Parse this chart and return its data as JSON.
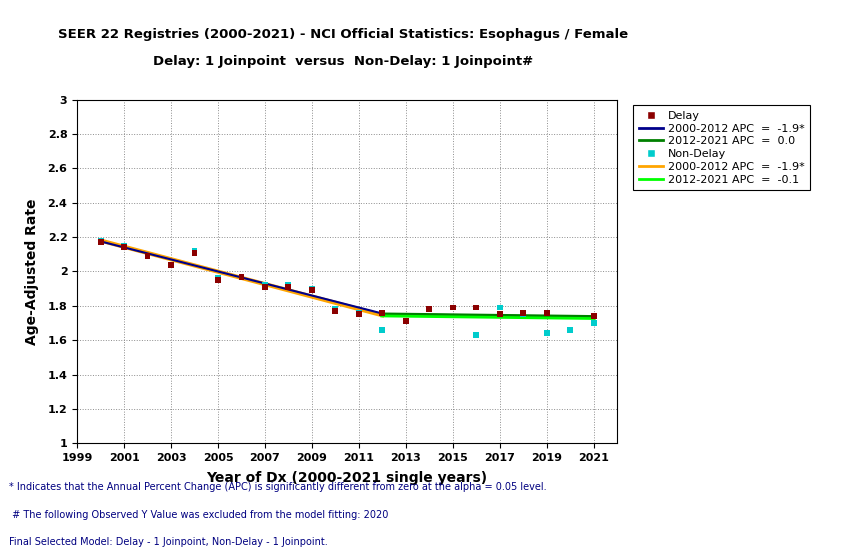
{
  "title_line1": "SEER 22 Registries (2000-2021) - NCI Official Statistics: Esophagus / Female",
  "title_line2": "Delay: 1 Joinpoint  versus  Non-Delay: 1 Joinpoint#",
  "xlabel": "Year of Dx (2000-2021 single years)",
  "ylabel": "Age-Adjusted Rate",
  "xlim": [
    1999,
    2022
  ],
  "ylim": [
    1.0,
    3.0
  ],
  "yticks": [
    1.0,
    1.2,
    1.4,
    1.6,
    1.8,
    2.0,
    2.2,
    2.4,
    2.6,
    2.8,
    3.0
  ],
  "xticks": [
    1999,
    2001,
    2003,
    2005,
    2007,
    2009,
    2011,
    2013,
    2015,
    2017,
    2019,
    2021
  ],
  "delay_scatter_x": [
    2000,
    2001,
    2002,
    2003,
    2004,
    2005,
    2006,
    2007,
    2008,
    2009,
    2010,
    2011,
    2012,
    2013,
    2014,
    2015,
    2016,
    2017,
    2018,
    2019,
    2021
  ],
  "delay_scatter_y": [
    2.17,
    2.14,
    2.09,
    2.04,
    2.11,
    1.95,
    1.97,
    1.91,
    1.91,
    1.89,
    1.77,
    1.75,
    1.76,
    1.71,
    1.78,
    1.79,
    1.79,
    1.75,
    1.76,
    1.76,
    1.74
  ],
  "nondelay_scatter_x": [
    2000,
    2001,
    2002,
    2003,
    2004,
    2005,
    2006,
    2007,
    2008,
    2009,
    2010,
    2011,
    2012,
    2013,
    2014,
    2015,
    2016,
    2017,
    2018,
    2019,
    2020,
    2021
  ],
  "nondelay_scatter_y": [
    2.18,
    2.15,
    2.09,
    2.04,
    2.12,
    1.96,
    1.97,
    1.92,
    1.92,
    1.9,
    1.78,
    1.76,
    1.66,
    1.71,
    1.78,
    1.79,
    1.63,
    1.79,
    1.75,
    1.64,
    1.66,
    1.7
  ],
  "delay_trend1_x": [
    2000,
    2012
  ],
  "delay_trend1_y": [
    2.175,
    1.755
  ],
  "delay_trend2_x": [
    2012,
    2021
  ],
  "delay_trend2_y": [
    1.755,
    1.74
  ],
  "nondelay_trend1_x": [
    2000,
    2012
  ],
  "nondelay_trend1_y": [
    2.18,
    1.745
  ],
  "nondelay_trend2_x": [
    2012,
    2021
  ],
  "nondelay_trend2_y": [
    1.745,
    1.73
  ],
  "delay_color": "#8B0000",
  "delay_marker": "s",
  "nondelay_color": "#00CCCC",
  "nondelay_marker": "s",
  "delay_trend1_color": "#00008B",
  "delay_trend2_color": "#008000",
  "nondelay_trend1_color": "#FFA500",
  "nondelay_trend2_color": "#00FF00",
  "legend_entries": [
    {
      "label": "Delay",
      "type": "marker",
      "color": "#8B0000",
      "marker": "s"
    },
    {
      "label": "2000-2012 APC  =  -1.9*",
      "type": "line",
      "color": "#00008B"
    },
    {
      "label": "2012-2021 APC  =  0.0",
      "type": "line",
      "color": "#008000"
    },
    {
      "label": "Non-Delay",
      "type": "marker",
      "color": "#00CCCC",
      "marker": "s"
    },
    {
      "label": "2000-2012 APC  =  -1.9*",
      "type": "line",
      "color": "#FFA500"
    },
    {
      "label": "2012-2021 APC  =  -0.1",
      "type": "line",
      "color": "#00FF00"
    }
  ],
  "footnote1": "* Indicates that the Annual Percent Change (APC) is significantly different from zero at the alpha = 0.05 level.",
  "footnote2": " # The following Observed Y Value was excluded from the model fitting: 2020",
  "footnote3": "Final Selected Model: Delay - 1 Joinpoint, Non-Delay - 1 Joinpoint.",
  "footnote_color": "#000080"
}
